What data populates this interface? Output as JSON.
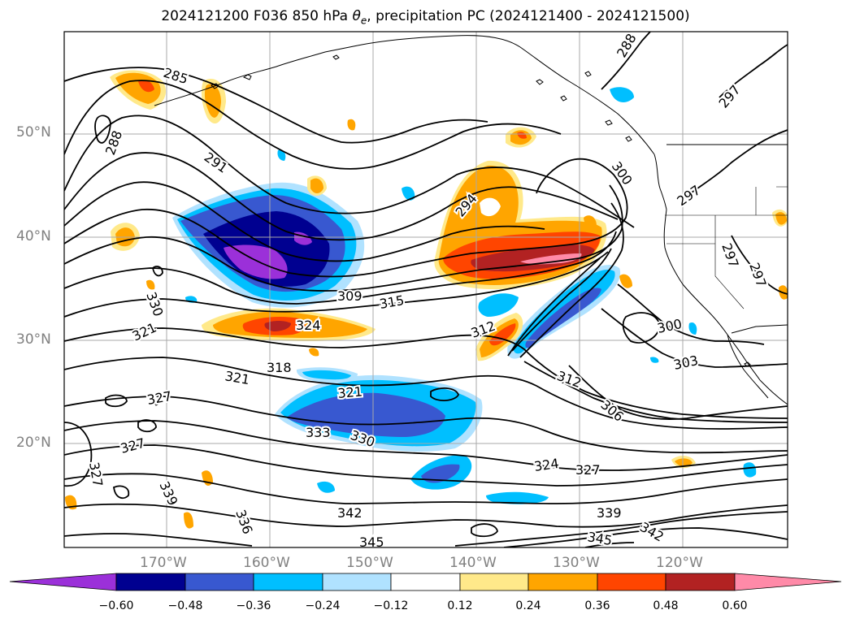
{
  "title_main": "2024121200 F036 850 hPa ",
  "title_theta": "θ",
  "title_theta_sub": "e",
  "title_rest": ", precipitation PC (2024121400 - 2024121500)",
  "lat_labels": [
    "50°N",
    "40°N",
    "30°N",
    "20°N"
  ],
  "lon_labels": [
    "170°W",
    "160°W",
    "150°W",
    "140°W",
    "130°W",
    "120°W"
  ],
  "contour_labels": [
    "285",
    "288",
    "288",
    "291",
    "294",
    "297",
    "297",
    "297",
    "297",
    "300",
    "300",
    "303",
    "306",
    "309",
    "312",
    "312",
    "315",
    "318",
    "321",
    "321",
    "321",
    "324",
    "324",
    "327",
    "327",
    "327",
    "327",
    "330",
    "330",
    "333",
    "336",
    "339",
    "339",
    "342",
    "342",
    "345",
    "345"
  ],
  "colorbar": {
    "ticks": [
      "−0.60",
      "−0.48",
      "−0.36",
      "−0.24",
      "−0.12",
      "0.12",
      "0.24",
      "0.36",
      "0.48",
      "0.60"
    ],
    "colors": [
      "#9b30d9",
      "#000090",
      "#3858d0",
      "#00bfff",
      "#b0e2ff",
      "#ffffff",
      "#ffe98a",
      "#ffa500",
      "#ff4500",
      "#b22222",
      "#ff8aa8"
    ]
  },
  "precip_colors": {
    "neg_strong": "#9b30d9",
    "neg_navy": "#000090",
    "neg_royal": "#3858d0",
    "neg_sky": "#00bfff",
    "neg_light": "#b0e2ff",
    "pos_light": "#ffe98a",
    "pos_orange": "#ffa500",
    "pos_red": "#ff4500",
    "pos_dark": "#b22222",
    "pos_pink": "#ff8aa8"
  }
}
